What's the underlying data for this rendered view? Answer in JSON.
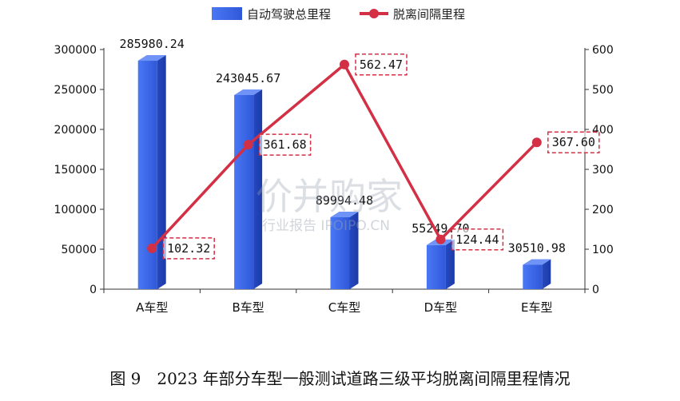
{
  "chart_data": {
    "type": "bar",
    "categories": [
      "A车型",
      "B车型",
      "C车型",
      "D车型",
      "E车型"
    ],
    "series": [
      {
        "name": "自动驾驶总里程",
        "type": "bar",
        "axis": "left",
        "color": "#3a63e0",
        "values": [
          285980.24,
          243045.67,
          89994.48,
          55249.7,
          30510.98
        ],
        "labels": [
          "285980.24",
          "243045.67",
          "89994.48",
          "55249.70",
          "30510.98"
        ]
      },
      {
        "name": "脱离间隔里程",
        "type": "line",
        "axis": "right",
        "color": "#d32f45",
        "values": [
          102.32,
          361.68,
          562.47,
          124.44,
          367.6
        ],
        "labels": [
          "102.32",
          "361.68",
          "562.47",
          "124.44",
          "367.60"
        ]
      }
    ],
    "y_left": {
      "min": 0,
      "max": 300000,
      "ticks": [
        "0",
        "50000",
        "100000",
        "150000",
        "200000",
        "250000",
        "300000"
      ]
    },
    "y_right": {
      "min": 0,
      "max": 600,
      "ticks": [
        "0",
        "100",
        "200",
        "300",
        "400",
        "500",
        "600"
      ]
    },
    "legend_position": "top-center"
  },
  "watermark": {
    "main": "价并购家",
    "sub": "行业报告 IPOIPO.CN"
  },
  "caption": "图 9　2023 年部分车型一般测试道路三级平均脱离间隔里程情况"
}
